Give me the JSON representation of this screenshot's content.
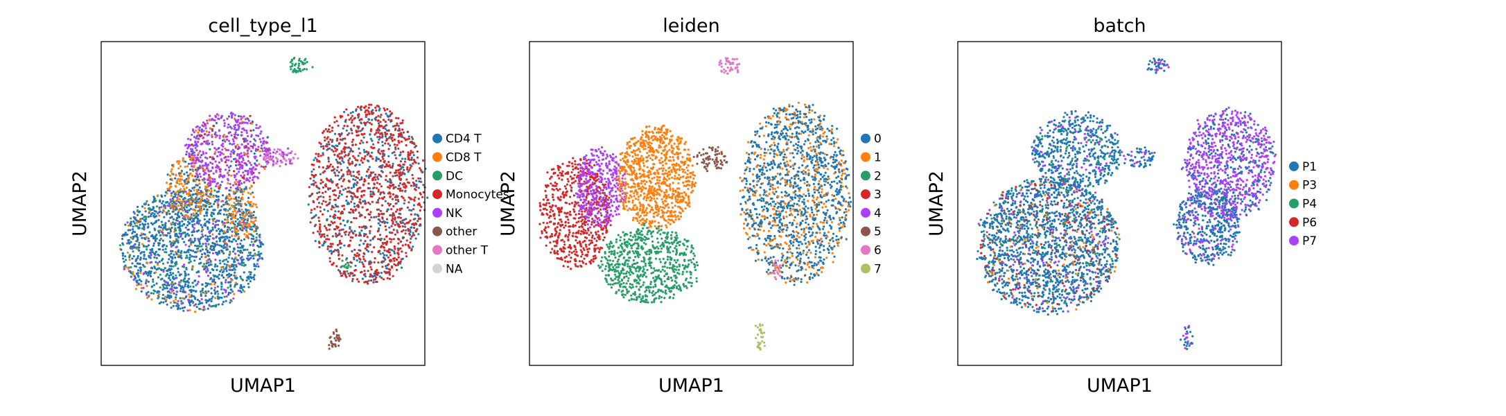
{
  "chart_data": [
    {
      "type": "scatter",
      "title": "cell_type_l1",
      "xlabel": "UMAP1",
      "ylabel": "UMAP2",
      "legend_position": "right-outside",
      "legend": [
        {
          "label": "CD4 T",
          "color": "#1f77b4"
        },
        {
          "label": "CD8 T",
          "color": "#ff7f0e"
        },
        {
          "label": "DC",
          "color": "#279e68"
        },
        {
          "label": "Monocytes",
          "color": "#d62728"
        },
        {
          "label": "NK",
          "color": "#aa40fc"
        },
        {
          "label": "other",
          "color": "#8c564b"
        },
        {
          "label": "other T",
          "color": "#e377c2"
        },
        {
          "label": "NA",
          "color": "#d3d3d3"
        }
      ],
      "regions": [
        {
          "group": "CD4 T",
          "mix": [
            "CD8 T",
            "NK",
            "DC"
          ]
        },
        {
          "group": "CD8 T",
          "mix": [
            "CD4 T"
          ]
        },
        {
          "group": "CD8 T",
          "mix": [
            "CD4 T"
          ]
        },
        {
          "group": "NK",
          "mix": [
            "CD4 T",
            "Monocytes",
            "CD8 T"
          ]
        },
        {
          "group": "other T",
          "mix": [
            "NK"
          ]
        },
        {
          "group": "Monocytes",
          "mix": [
            "CD4 T"
          ]
        },
        {
          "group": "DC",
          "mix": []
        },
        {
          "group": "DC",
          "mix": []
        },
        {
          "group": "other",
          "mix": []
        }
      ]
    },
    {
      "type": "scatter",
      "title": "leiden",
      "xlabel": "UMAP1",
      "ylabel": "UMAP2",
      "legend_position": "right-outside",
      "legend": [
        {
          "label": "0",
          "color": "#1f77b4"
        },
        {
          "label": "1",
          "color": "#ff7f0e"
        },
        {
          "label": "2",
          "color": "#279e68"
        },
        {
          "label": "3",
          "color": "#d62728"
        },
        {
          "label": "4",
          "color": "#aa40fc"
        },
        {
          "label": "5",
          "color": "#8c564b"
        },
        {
          "label": "6",
          "color": "#e377c2"
        },
        {
          "label": "7",
          "color": "#b5bd61"
        }
      ],
      "regions": [
        {
          "group": "3",
          "mix": []
        },
        {
          "group": "4",
          "mix": []
        },
        {
          "group": "1",
          "mix": []
        },
        {
          "group": "2",
          "mix": []
        },
        {
          "group": "5",
          "mix": []
        },
        {
          "group": "0",
          "mix": [
            "1"
          ]
        },
        {
          "group": "6",
          "mix": []
        },
        {
          "group": "6",
          "mix": []
        },
        {
          "group": "7",
          "mix": []
        }
      ]
    },
    {
      "type": "scatter",
      "title": "batch",
      "xlabel": "UMAP1",
      "ylabel": "UMAP2",
      "legend_position": "right-outside",
      "legend": [
        {
          "label": "P1",
          "color": "#1f77b4"
        },
        {
          "label": "P3",
          "color": "#ff7f0e"
        },
        {
          "label": "P4",
          "color": "#279e68"
        },
        {
          "label": "P6",
          "color": "#d62728"
        },
        {
          "label": "P7",
          "color": "#aa40fc"
        }
      ],
      "regions": [
        {
          "group": "P1",
          "mix": [
            "P7",
            "P3",
            "P4",
            "P6"
          ]
        },
        {
          "group": "P1",
          "mix": [
            "P7",
            "P4"
          ]
        },
        {
          "group": "P1",
          "mix": [
            "P7"
          ]
        },
        {
          "group": "P7",
          "mix": [
            "P1"
          ]
        },
        {
          "group": "P1",
          "mix": [
            "P7"
          ]
        },
        {
          "group": "P1",
          "mix": [
            "P7"
          ]
        },
        {
          "group": "P1",
          "mix": [
            "P7"
          ]
        }
      ]
    }
  ]
}
